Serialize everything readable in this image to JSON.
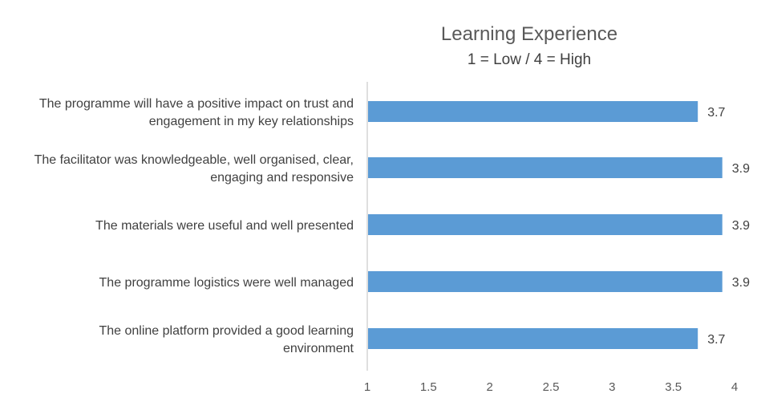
{
  "chart_data": {
    "type": "bar",
    "orientation": "horizontal",
    "title": "Learning Experience",
    "subtitle": "1 = Low / 4 = High",
    "categories": [
      [
        "The programme will have a positive impact on trust and",
        "engagement in my key relationships"
      ],
      [
        "The facilitator was knowledgeable, well organised, clear,",
        "engaging and responsive"
      ],
      [
        "The materials were useful and well presented"
      ],
      [
        "The programme logistics were well managed"
      ],
      [
        "The online platform provided a good learning",
        "environment"
      ]
    ],
    "values": [
      3.7,
      3.9,
      3.9,
      3.9,
      3.7
    ],
    "data_labels": [
      "3.7",
      "3.9",
      "3.9",
      "3.9",
      "3.7"
    ],
    "xlim": [
      1,
      4
    ],
    "x_ticks": [
      "1",
      "1.5",
      "2",
      "2.5",
      "3",
      "3.5",
      "4"
    ],
    "x_tick_values": [
      1,
      1.5,
      2,
      2.5,
      3,
      3.5,
      4
    ],
    "bar_color": "#5B9BD5",
    "grid": false,
    "legend": "none"
  }
}
